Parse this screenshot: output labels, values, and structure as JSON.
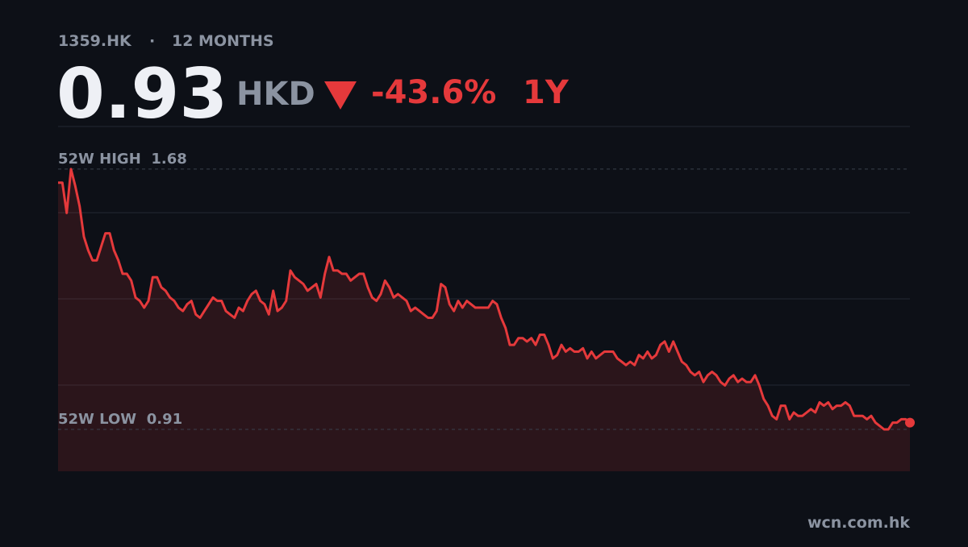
{
  "header": {
    "ticker": "1359.HK",
    "separator": "·",
    "period": "12 MONTHS",
    "price": "0.93",
    "currency": "HKD",
    "change": "-43.6%",
    "range": "1Y"
  },
  "chart_data": {
    "type": "line",
    "color": "#e5393b",
    "values": [
      1.64,
      1.64,
      1.55,
      1.68,
      1.63,
      1.57,
      1.48,
      1.44,
      1.41,
      1.41,
      1.45,
      1.49,
      1.49,
      1.44,
      1.41,
      1.37,
      1.37,
      1.35,
      1.3,
      1.29,
      1.27,
      1.29,
      1.36,
      1.36,
      1.33,
      1.32,
      1.3,
      1.29,
      1.27,
      1.26,
      1.28,
      1.29,
      1.25,
      1.24,
      1.26,
      1.28,
      1.3,
      1.29,
      1.29,
      1.26,
      1.25,
      1.24,
      1.27,
      1.26,
      1.29,
      1.31,
      1.32,
      1.29,
      1.28,
      1.25,
      1.32,
      1.26,
      1.27,
      1.29,
      1.38,
      1.36,
      1.35,
      1.34,
      1.32,
      1.33,
      1.34,
      1.3,
      1.37,
      1.42,
      1.38,
      1.38,
      1.37,
      1.37,
      1.35,
      1.36,
      1.37,
      1.37,
      1.33,
      1.3,
      1.29,
      1.31,
      1.35,
      1.33,
      1.3,
      1.31,
      1.3,
      1.29,
      1.26,
      1.27,
      1.26,
      1.25,
      1.24,
      1.24,
      1.26,
      1.34,
      1.33,
      1.28,
      1.26,
      1.29,
      1.27,
      1.29,
      1.28,
      1.27,
      1.27,
      1.27,
      1.27,
      1.29,
      1.28,
      1.24,
      1.21,
      1.16,
      1.16,
      1.18,
      1.18,
      1.17,
      1.18,
      1.16,
      1.19,
      1.19,
      1.16,
      1.12,
      1.13,
      1.16,
      1.14,
      1.15,
      1.14,
      1.14,
      1.15,
      1.12,
      1.14,
      1.12,
      1.13,
      1.14,
      1.14,
      1.14,
      1.12,
      1.11,
      1.1,
      1.11,
      1.1,
      1.13,
      1.12,
      1.14,
      1.12,
      1.13,
      1.16,
      1.17,
      1.14,
      1.17,
      1.14,
      1.11,
      1.1,
      1.08,
      1.07,
      1.08,
      1.05,
      1.07,
      1.08,
      1.07,
      1.05,
      1.04,
      1.06,
      1.07,
      1.05,
      1.06,
      1.05,
      1.05,
      1.07,
      1.04,
      1.0,
      0.98,
      0.95,
      0.94,
      0.98,
      0.98,
      0.94,
      0.96,
      0.95,
      0.95,
      0.96,
      0.97,
      0.96,
      0.99,
      0.98,
      0.99,
      0.97,
      0.98,
      0.98,
      0.99,
      0.98,
      0.95,
      0.95,
      0.95,
      0.94,
      0.95,
      0.93,
      0.92,
      0.91,
      0.91,
      0.93,
      0.93,
      0.94,
      0.94,
      0.93
    ],
    "ylim": [
      0.786,
      1.806
    ],
    "yticks": [
      1.041,
      1.296,
      1.551
    ],
    "grid": true,
    "high_label": "52W HIGH",
    "high": 1.68,
    "low_label": "52W LOW",
    "low": 0.91
  },
  "footer": {
    "source": "wcn.com.hk"
  }
}
